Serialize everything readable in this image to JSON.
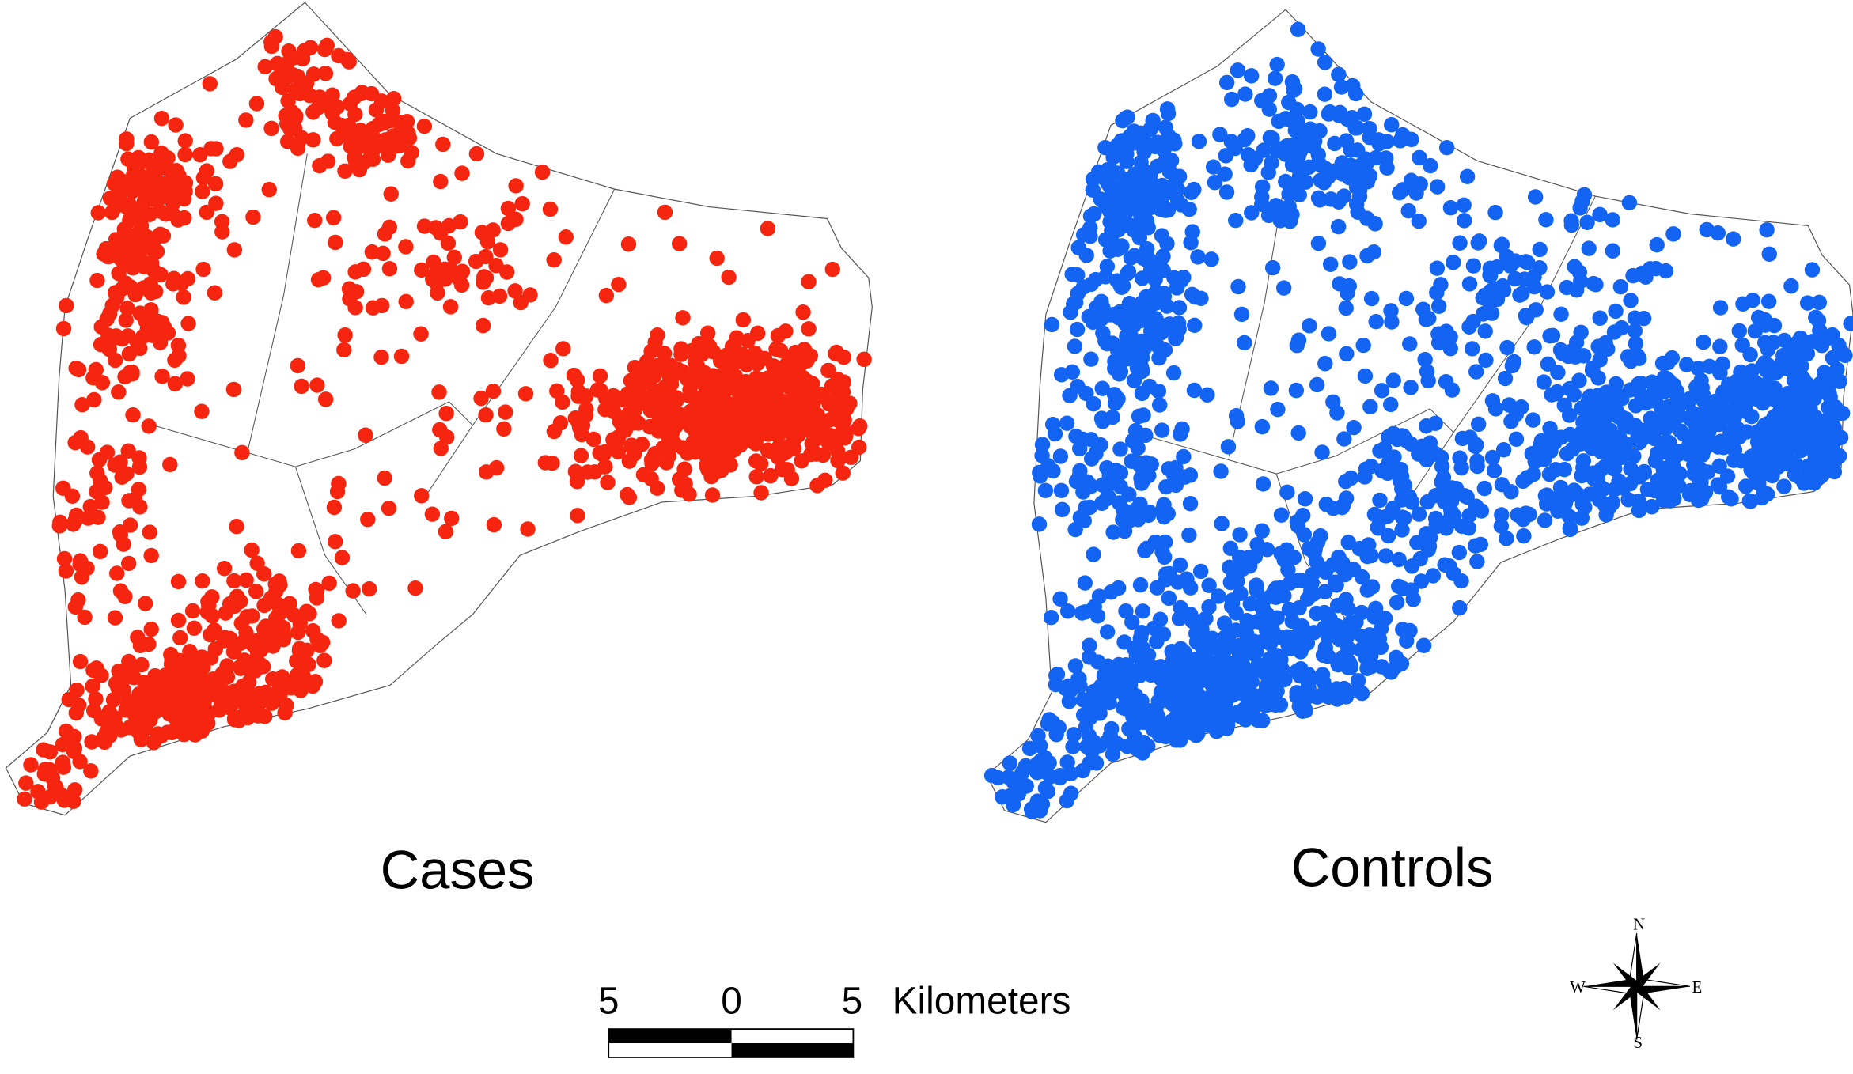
{
  "maps": [
    {
      "label": "Cases",
      "color": "#f5250f"
    },
    {
      "label": "Controls",
      "color": "#1464f4"
    }
  ],
  "scale_bar": {
    "ticks": [
      "5",
      "0",
      "5"
    ],
    "unit": "Kilometers"
  },
  "compass": {
    "north": "N",
    "east": "E",
    "south": "S",
    "west": "W"
  }
}
